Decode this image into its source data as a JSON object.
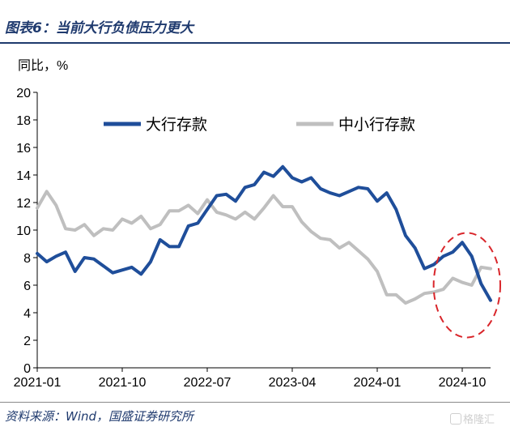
{
  "figure": {
    "title": "图表6：当前大行负债压力更大",
    "source": "资料来源：Wind，国盛证券研究所",
    "watermark": "格隆汇"
  },
  "colors": {
    "large_bank_series": "#1f4e9a",
    "small_bank_series": "#bfbfbf",
    "highlight_ellipse": "#d9262b",
    "title": "#1f3a6e"
  },
  "chart_data": {
    "type": "line",
    "ylabel": "同比，%",
    "xlabel": "",
    "ylim": [
      0,
      20
    ],
    "yticks": [
      0,
      2,
      4,
      6,
      8,
      10,
      12,
      14,
      16,
      18,
      20
    ],
    "x": [
      "2021-01",
      "2021-02",
      "2021-03",
      "2021-04",
      "2021-05",
      "2021-06",
      "2021-07",
      "2021-08",
      "2021-09",
      "2021-10",
      "2021-11",
      "2021-12",
      "2022-01",
      "2022-02",
      "2022-03",
      "2022-04",
      "2022-05",
      "2022-06",
      "2022-07",
      "2022-08",
      "2022-09",
      "2022-10",
      "2022-11",
      "2022-12",
      "2023-01",
      "2023-02",
      "2023-03",
      "2023-04",
      "2023-05",
      "2023-06",
      "2023-07",
      "2023-08",
      "2023-09",
      "2023-10",
      "2023-11",
      "2023-12",
      "2024-01",
      "2024-02",
      "2024-03",
      "2024-04",
      "2024-05",
      "2024-06",
      "2024-07",
      "2024-08",
      "2024-09",
      "2024-10",
      "2024-11",
      "2024-12",
      "2025-01"
    ],
    "xticks": [
      "2021-01",
      "2021-10",
      "2022-07",
      "2023-04",
      "2024-01",
      "2024-10"
    ],
    "legend_position": "top",
    "grid": false,
    "series": [
      {
        "name": "大行存款",
        "values": [
          8.3,
          7.7,
          8.1,
          8.4,
          7.0,
          8.0,
          7.9,
          7.4,
          6.9,
          7.1,
          7.3,
          6.8,
          7.7,
          9.3,
          8.8,
          8.8,
          10.3,
          10.5,
          11.5,
          12.5,
          12.6,
          12.1,
          13.1,
          13.3,
          14.2,
          13.9,
          14.6,
          13.8,
          13.5,
          13.8,
          13.0,
          12.7,
          12.5,
          12.8,
          13.1,
          13.0,
          12.1,
          12.7,
          11.5,
          9.6,
          8.7,
          7.2,
          7.5,
          8.1,
          8.4,
          9.1,
          8.1,
          6.1,
          4.9
        ]
      },
      {
        "name": "中小行存款",
        "values": [
          11.6,
          12.8,
          11.8,
          10.1,
          10.0,
          10.4,
          9.6,
          10.1,
          10.0,
          10.8,
          10.5,
          11.0,
          10.1,
          10.4,
          11.4,
          11.4,
          11.8,
          11.2,
          12.2,
          11.3,
          11.1,
          10.8,
          11.3,
          10.8,
          11.6,
          12.5,
          11.7,
          11.7,
          10.6,
          9.9,
          9.4,
          9.3,
          8.7,
          9.1,
          8.5,
          7.9,
          7.0,
          5.3,
          5.3,
          4.7,
          5.0,
          5.4,
          5.5,
          5.7,
          6.5,
          6.2,
          6.0,
          7.3,
          7.2
        ]
      }
    ],
    "annotations": [
      {
        "type": "dashed-ellipse",
        "note": "",
        "x_range": [
          "2024-08",
          "2025-01"
        ],
        "y_range": [
          2.2,
          9.8
        ]
      }
    ]
  }
}
